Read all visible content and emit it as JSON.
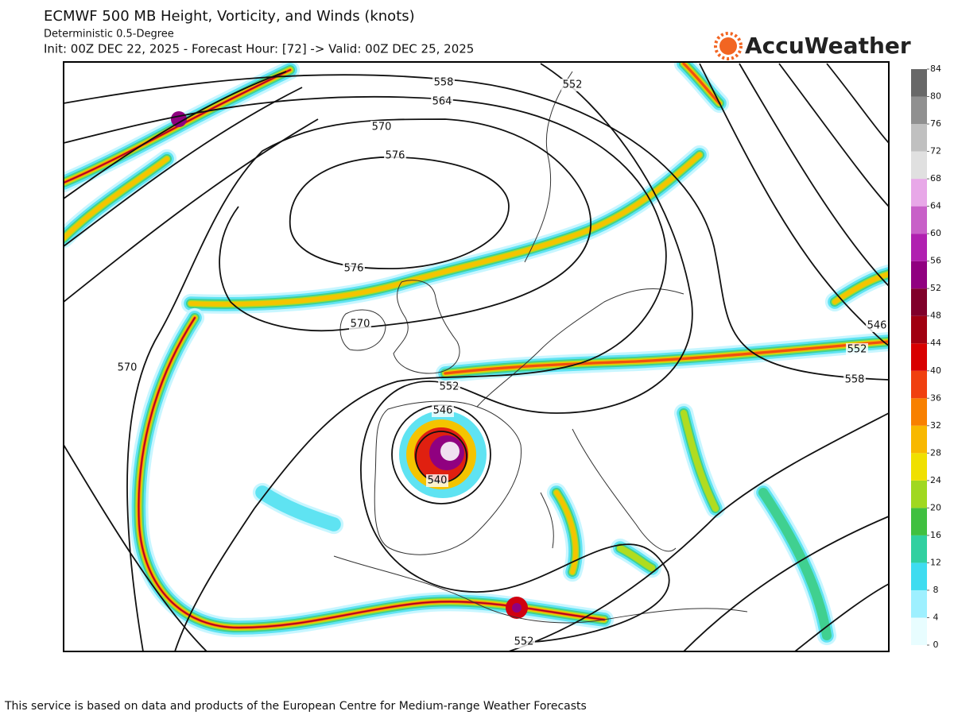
{
  "header": {
    "title": "ECMWF 500 MB Height, Vorticity, and Winds (knots)",
    "subtitle": "Deterministic 0.5-Degree",
    "run_info": "Init: 00Z DEC 22, 2025 - Forecast Hour: [72] -> Valid: 00Z DEC 25, 2025"
  },
  "logo": {
    "text": "AccuWeather"
  },
  "colorbar": {
    "ticks": [
      0,
      4,
      8,
      12,
      16,
      20,
      24,
      28,
      32,
      36,
      40,
      44,
      48,
      52,
      56,
      60,
      64,
      68,
      72,
      76,
      80,
      84
    ],
    "colors": [
      "#e8fdff",
      "#9ef0ff",
      "#3edcf0",
      "#30d0a0",
      "#40c040",
      "#a0d820",
      "#f0e000",
      "#f8b800",
      "#f88000",
      "#f04010",
      "#d80000",
      "#a00010",
      "#80002a",
      "#900080",
      "#b020b0",
      "#c860c8",
      "#e8a8e8",
      "#e0e0e0",
      "#c0c0c0",
      "#909090",
      "#686868"
    ]
  },
  "contour_labels": [
    558,
    552,
    564,
    570,
    576,
    576,
    570,
    570,
    552,
    546,
    540,
    558,
    552,
    546,
    552
  ],
  "footer": "This service is based on data and products of the European Centre for Medium-range Weather Forecasts"
}
